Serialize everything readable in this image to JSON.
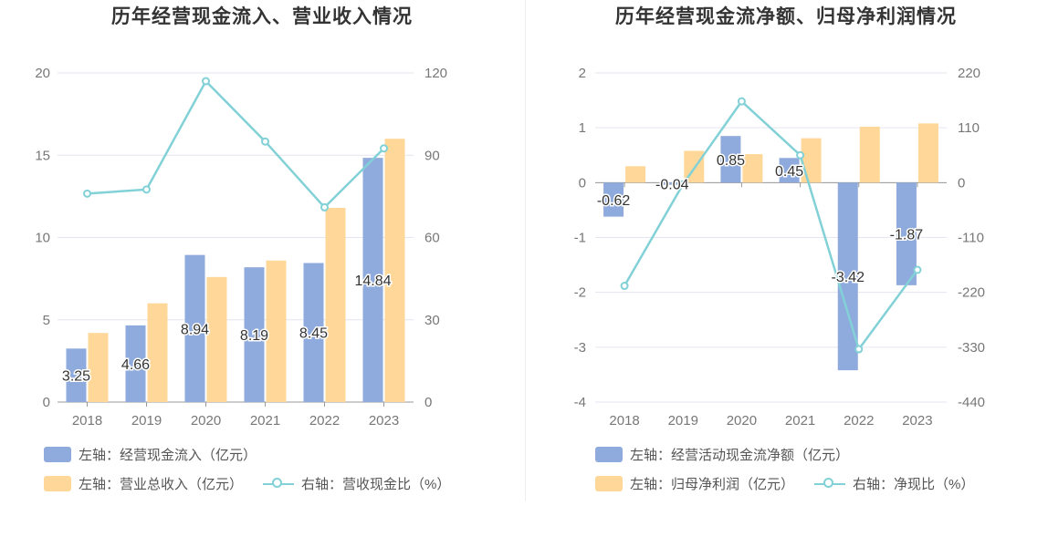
{
  "colors": {
    "bar_primary": "#8faadc",
    "bar_secondary": "#ffd899",
    "line": "#82d1d7",
    "grid": "#e3e6f0",
    "axis_text": "#777777"
  },
  "chart_data": [
    {
      "type": "bar",
      "title": "历年经营现金流入、营业收入情况",
      "categories": [
        "2018",
        "2019",
        "2020",
        "2021",
        "2022",
        "2023"
      ],
      "left_axis": {
        "min": 0,
        "max": 20,
        "ticks": [
          "0",
          "5",
          "10",
          "15",
          "20"
        ]
      },
      "right_axis": {
        "min": 0,
        "max": 120,
        "ticks": [
          "0",
          "30",
          "60",
          "90",
          "120"
        ]
      },
      "series": [
        {
          "name": "左轴：经营现金流入（亿元）",
          "axis": "left",
          "kind": "bar",
          "values": [
            3.25,
            4.66,
            8.94,
            8.19,
            8.45,
            14.84
          ],
          "labels": [
            "3.25",
            "4.66",
            "8.94",
            "8.19",
            "8.45",
            "14.84"
          ]
        },
        {
          "name": "左轴：营业总收入（亿元）",
          "axis": "left",
          "kind": "bar",
          "values": [
            4.2,
            6.0,
            7.6,
            8.6,
            11.8,
            16.0
          ]
        },
        {
          "name": "右轴：营收现金比（%）",
          "axis": "right",
          "kind": "line",
          "values": [
            76,
            77.5,
            117,
            95,
            71,
            92.5
          ]
        }
      ]
    },
    {
      "type": "bar",
      "title": "历年经营现金流净额、归母净利润情况",
      "categories": [
        "2018",
        "2019",
        "2020",
        "2021",
        "2022",
        "2023"
      ],
      "left_axis": {
        "min": -4,
        "max": 2,
        "ticks": [
          "-4",
          "-3",
          "-2",
          "-1",
          "0",
          "1",
          "2"
        ]
      },
      "right_axis": {
        "min": -440,
        "max": 220,
        "ticks": [
          "-440",
          "-330",
          "-220",
          "-110",
          "0",
          "110",
          "220"
        ]
      },
      "series": [
        {
          "name": "左轴：经营活动现金流净额（亿元）",
          "axis": "left",
          "kind": "bar",
          "values": [
            -0.62,
            -0.04,
            0.85,
            0.45,
            -3.42,
            -1.87
          ],
          "labels": [
            "-0.62",
            "-0.04",
            "0.85",
            "0.45",
            "-3.42",
            "-1.87"
          ]
        },
        {
          "name": "左轴：归母净利润（亿元）",
          "axis": "left",
          "kind": "bar",
          "values": [
            0.3,
            0.58,
            0.52,
            0.81,
            1.02,
            1.08
          ]
        },
        {
          "name": "右轴：净现比（%）",
          "axis": "right",
          "kind": "line",
          "values": [
            -207,
            -3,
            163,
            55,
            -334,
            -175
          ]
        }
      ]
    }
  ]
}
